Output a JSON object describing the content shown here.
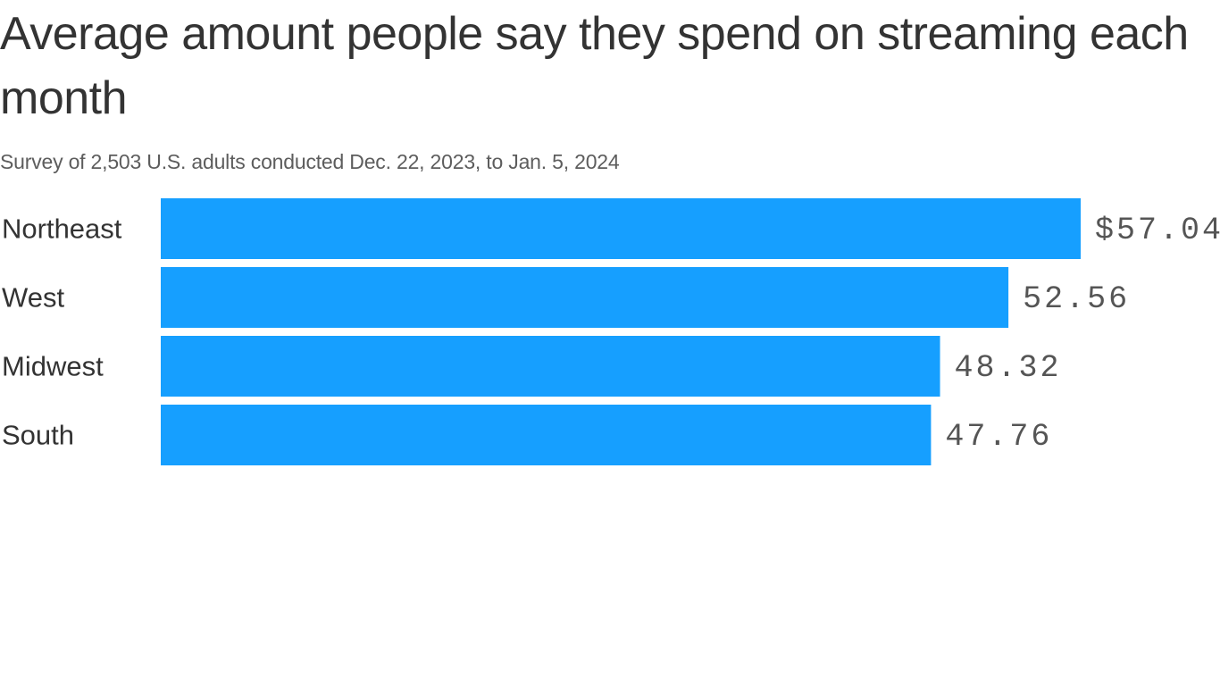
{
  "title": "Average amount people say they spend on streaming each month",
  "subtitle": "Survey of 2,503 U.S. adults conducted Dec. 22, 2023, to Jan. 5, 2024",
  "colors": {
    "bar": "#169fff",
    "text": "#333333",
    "subtext": "#5d5d5d",
    "value_text": "#555555"
  },
  "chart_data": {
    "type": "bar",
    "orientation": "horizontal",
    "categories": [
      "Northeast",
      "West",
      "Midwest",
      "South"
    ],
    "values": [
      57.04,
      52.56,
      48.32,
      47.76
    ],
    "value_labels": [
      "$57.04",
      "52.56",
      "48.32",
      "47.76"
    ],
    "xlim": [
      0,
      57.04
    ],
    "grid": false,
    "legend": "none"
  }
}
